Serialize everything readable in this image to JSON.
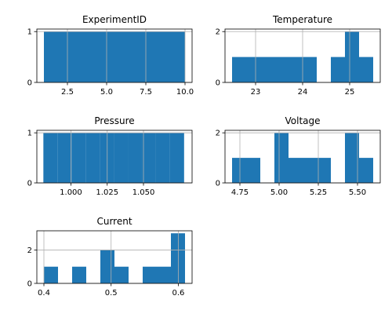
{
  "chart_data": [
    {
      "type": "bar",
      "title": "ExperimentID",
      "xlim": [
        0.55,
        10.45
      ],
      "ylim": [
        0,
        1.05
      ],
      "bins": [
        {
          "x0": 1.0,
          "x1": 1.9,
          "count": 1
        },
        {
          "x0": 1.9,
          "x1": 2.8,
          "count": 1
        },
        {
          "x0": 2.8,
          "x1": 3.7,
          "count": 1
        },
        {
          "x0": 3.7,
          "x1": 4.6,
          "count": 1
        },
        {
          "x0": 4.6,
          "x1": 5.5,
          "count": 1
        },
        {
          "x0": 5.5,
          "x1": 6.4,
          "count": 1
        },
        {
          "x0": 6.4,
          "x1": 7.3,
          "count": 1
        },
        {
          "x0": 7.3,
          "x1": 8.2,
          "count": 1
        },
        {
          "x0": 8.2,
          "x1": 9.1,
          "count": 1
        },
        {
          "x0": 9.1,
          "x1": 10.0,
          "count": 1
        }
      ],
      "xticks": [
        {
          "value": 2.5,
          "label": "2.5"
        },
        {
          "value": 5.0,
          "label": "5.0"
        },
        {
          "value": 7.5,
          "label": "7.5"
        },
        {
          "value": 10.0,
          "label": "10.0"
        }
      ],
      "yticks": [
        {
          "value": 0,
          "label": "0"
        },
        {
          "value": 1,
          "label": "1"
        }
      ],
      "grid": true
    },
    {
      "type": "bar",
      "title": "Temperature",
      "xlim": [
        22.35,
        25.65
      ],
      "ylim": [
        0,
        2.1
      ],
      "bins": [
        {
          "x0": 22.5,
          "x1": 22.8,
          "count": 1
        },
        {
          "x0": 22.8,
          "x1": 23.1,
          "count": 1
        },
        {
          "x0": 23.1,
          "x1": 23.4,
          "count": 1
        },
        {
          "x0": 23.4,
          "x1": 23.7,
          "count": 1
        },
        {
          "x0": 23.7,
          "x1": 24.0,
          "count": 1
        },
        {
          "x0": 24.0,
          "x1": 24.3,
          "count": 1
        },
        {
          "x0": 24.3,
          "x1": 24.6,
          "count": 0
        },
        {
          "x0": 24.6,
          "x1": 24.9,
          "count": 1
        },
        {
          "x0": 24.9,
          "x1": 25.2,
          "count": 2
        },
        {
          "x0": 25.2,
          "x1": 25.5,
          "count": 1
        }
      ],
      "xticks": [
        {
          "value": 23,
          "label": "23"
        },
        {
          "value": 24,
          "label": "24"
        },
        {
          "value": 25,
          "label": "25"
        }
      ],
      "yticks": [
        {
          "value": 0,
          "label": "0"
        },
        {
          "value": 2,
          "label": "2"
        }
      ],
      "grid": true
    },
    {
      "type": "bar",
      "title": "Pressure",
      "xlim": [
        0.9765,
        1.0835
      ],
      "ylim": [
        0,
        1.05
      ],
      "bins": [
        {
          "x0": 0.981,
          "x1": 0.9907,
          "count": 1
        },
        {
          "x0": 0.9907,
          "x1": 1.0004,
          "count": 1
        },
        {
          "x0": 1.0004,
          "x1": 1.0101,
          "count": 1
        },
        {
          "x0": 1.0101,
          "x1": 1.0198,
          "count": 1
        },
        {
          "x0": 1.0198,
          "x1": 1.0295,
          "count": 1
        },
        {
          "x0": 1.0295,
          "x1": 1.0392,
          "count": 1
        },
        {
          "x0": 1.0392,
          "x1": 1.0489,
          "count": 1
        },
        {
          "x0": 1.0489,
          "x1": 1.0586,
          "count": 1
        },
        {
          "x0": 1.0586,
          "x1": 1.0683,
          "count": 1
        },
        {
          "x0": 1.0683,
          "x1": 1.078,
          "count": 1
        }
      ],
      "xticks": [
        {
          "value": 1.0,
          "label": "1.000"
        },
        {
          "value": 1.025,
          "label": "1.025"
        },
        {
          "value": 1.05,
          "label": "1.050"
        }
      ],
      "yticks": [
        {
          "value": 0,
          "label": "0"
        },
        {
          "value": 1,
          "label": "1"
        }
      ],
      "grid": true
    },
    {
      "type": "bar",
      "title": "Voltage",
      "xlim": [
        4.655,
        5.645
      ],
      "ylim": [
        0,
        2.1
      ],
      "bins": [
        {
          "x0": 4.7,
          "x1": 4.79,
          "count": 1
        },
        {
          "x0": 4.79,
          "x1": 4.88,
          "count": 1
        },
        {
          "x0": 4.88,
          "x1": 4.97,
          "count": 0
        },
        {
          "x0": 4.97,
          "x1": 5.06,
          "count": 2
        },
        {
          "x0": 5.06,
          "x1": 5.15,
          "count": 1
        },
        {
          "x0": 5.15,
          "x1": 5.24,
          "count": 1
        },
        {
          "x0": 5.24,
          "x1": 5.33,
          "count": 1
        },
        {
          "x0": 5.33,
          "x1": 5.42,
          "count": 0
        },
        {
          "x0": 5.42,
          "x1": 5.51,
          "count": 2
        },
        {
          "x0": 5.51,
          "x1": 5.6,
          "count": 1
        }
      ],
      "xticks": [
        {
          "value": 4.75,
          "label": "4.75"
        },
        {
          "value": 5.0,
          "label": "5.00"
        },
        {
          "value": 5.25,
          "label": "5.25"
        },
        {
          "value": 5.5,
          "label": "5.50"
        }
      ],
      "yticks": [
        {
          "value": 0,
          "label": "0"
        },
        {
          "value": 2,
          "label": "2"
        }
      ],
      "grid": true
    },
    {
      "type": "bar",
      "title": "Current",
      "xlim": [
        0.3895,
        0.6205
      ],
      "ylim": [
        0,
        3.15
      ],
      "bins": [
        {
          "x0": 0.4,
          "x1": 0.421,
          "count": 1
        },
        {
          "x0": 0.421,
          "x1": 0.442,
          "count": 0
        },
        {
          "x0": 0.442,
          "x1": 0.463,
          "count": 1
        },
        {
          "x0": 0.463,
          "x1": 0.484,
          "count": 0
        },
        {
          "x0": 0.484,
          "x1": 0.505,
          "count": 2
        },
        {
          "x0": 0.505,
          "x1": 0.526,
          "count": 1
        },
        {
          "x0": 0.526,
          "x1": 0.547,
          "count": 0
        },
        {
          "x0": 0.547,
          "x1": 0.568,
          "count": 1
        },
        {
          "x0": 0.568,
          "x1": 0.589,
          "count": 1
        },
        {
          "x0": 0.589,
          "x1": 0.61,
          "count": 3
        }
      ],
      "xticks": [
        {
          "value": 0.4,
          "label": "0.4"
        },
        {
          "value": 0.5,
          "label": "0.5"
        },
        {
          "value": 0.6,
          "label": "0.6"
        }
      ],
      "yticks": [
        {
          "value": 0,
          "label": "0"
        },
        {
          "value": 2,
          "label": "2"
        }
      ],
      "grid": true
    }
  ],
  "colors": {
    "bar": "#1f77b4",
    "grid": "#b0b0b0",
    "axis": "#000000"
  }
}
